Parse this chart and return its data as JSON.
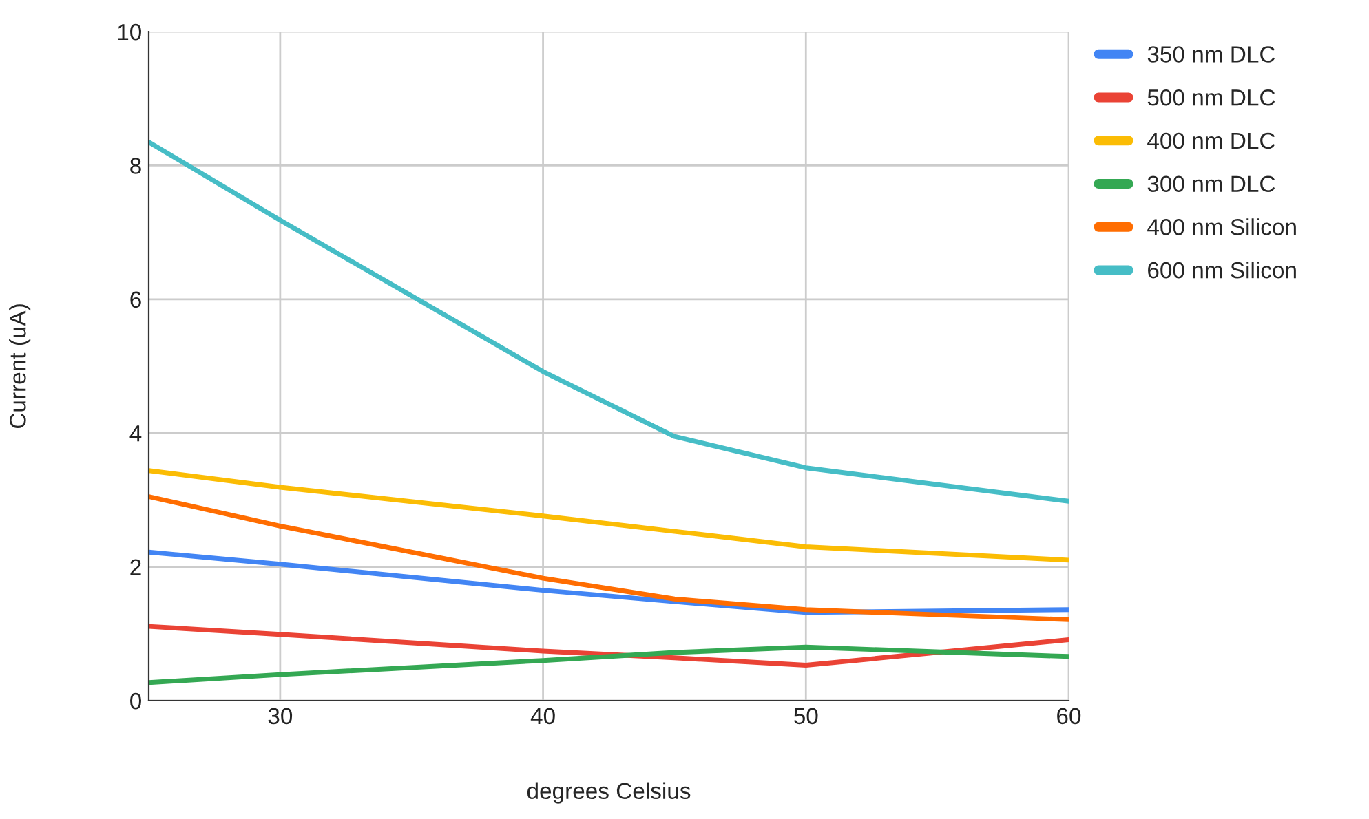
{
  "chart_data": {
    "type": "line",
    "xlabel": "degrees Celsius",
    "ylabel": "Current (uA)",
    "x": [
      25,
      30,
      40,
      45,
      50,
      60
    ],
    "series": [
      {
        "name": "350 nm DLC",
        "color": "#4285f4",
        "values": [
          2.22,
          2.04,
          1.65,
          1.48,
          1.32,
          1.36
        ]
      },
      {
        "name": "500 nm DLC",
        "color": "#ea4335",
        "values": [
          1.11,
          0.99,
          0.74,
          0.64,
          0.53,
          0.91
        ]
      },
      {
        "name": "400 nm DLC",
        "color": "#fbbc04",
        "values": [
          3.44,
          3.19,
          2.76,
          2.53,
          2.3,
          2.1
        ]
      },
      {
        "name": "300 nm DLC",
        "color": "#34a853",
        "values": [
          0.27,
          0.39,
          0.6,
          0.72,
          0.8,
          0.66
        ]
      },
      {
        "name": "400 nm Silicon",
        "color": "#ff6d01",
        "values": [
          3.05,
          2.61,
          1.83,
          1.52,
          1.36,
          1.21
        ]
      },
      {
        "name": "600 nm Silicon",
        "color": "#46bdc6",
        "values": [
          8.35,
          7.18,
          4.92,
          3.95,
          3.48,
          2.98
        ]
      }
    ],
    "xlim": [
      25,
      60
    ],
    "xticks": [
      30,
      40,
      50,
      60
    ],
    "ylim": [
      0,
      10
    ],
    "yticks": [
      0,
      2,
      4,
      6,
      8,
      10
    ],
    "grid": true,
    "legend": "top right",
    "line_style": "solid"
  }
}
